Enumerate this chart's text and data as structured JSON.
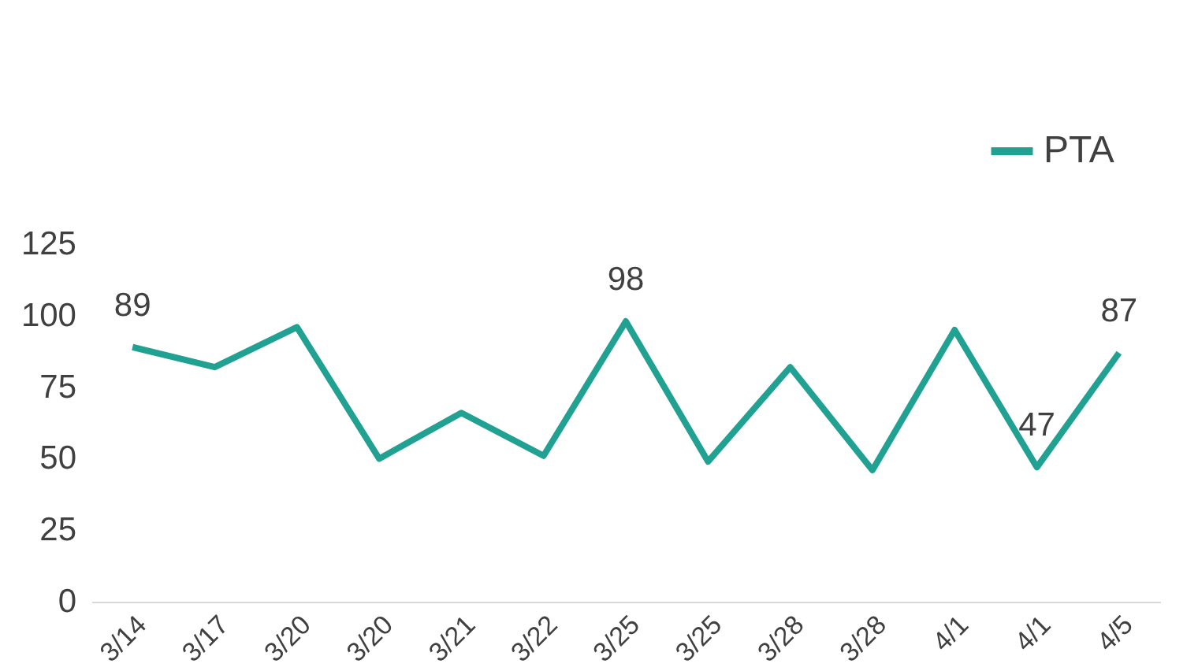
{
  "chart_data": {
    "type": "line",
    "categories": [
      "3/14",
      "3/17",
      "3/20",
      "3/20",
      "3/21",
      "3/22",
      "3/25",
      "3/25",
      "3/28",
      "3/28",
      "4/1",
      "4/1",
      "4/5"
    ],
    "series": [
      {
        "name": "PTA",
        "color": "#21a192",
        "values": [
          89,
          82,
          96,
          50,
          66,
          51,
          98,
          49,
          82,
          46,
          95,
          47,
          87
        ],
        "value_labels": [
          "89",
          null,
          null,
          null,
          null,
          null,
          "98",
          null,
          null,
          null,
          null,
          "47",
          "87"
        ]
      }
    ],
    "ylim": [
      0,
      125
    ],
    "yticks": [
      0,
      25,
      50,
      75,
      100,
      125
    ],
    "grid": false,
    "legend": "top right",
    "marker": "none",
    "line_style": "solid"
  }
}
